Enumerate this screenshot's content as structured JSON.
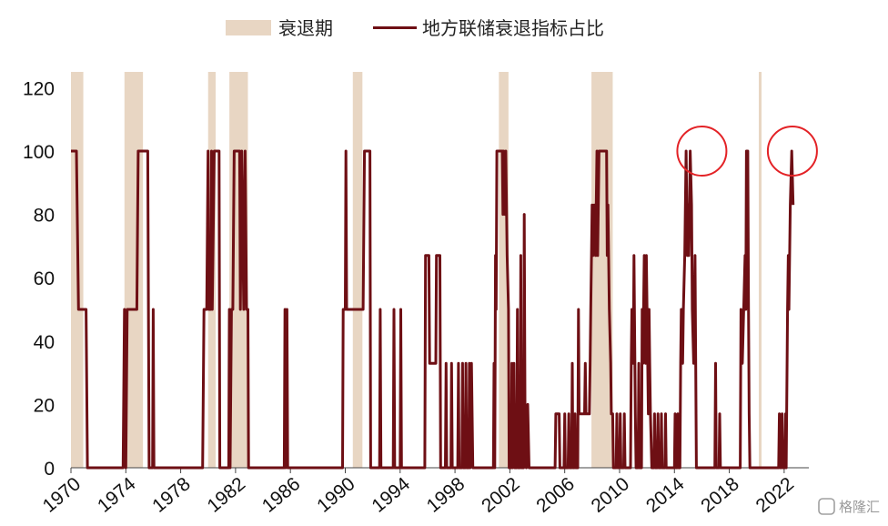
{
  "legend": {
    "recession_label": "衰退期",
    "series_label": "地方联储衰退指标占比"
  },
  "watermark": {
    "text": "格隆汇"
  },
  "colors": {
    "recession": "#e8d6c3",
    "series": "#6e0f14",
    "highlight_circle": "#e32226"
  },
  "chart_data": {
    "type": "line",
    "xlim": [
      1970,
      2023.8
    ],
    "ylim": [
      0,
      125
    ],
    "yticks": [
      0,
      20,
      40,
      60,
      80,
      100,
      120
    ],
    "xticks": [
      1970,
      1974,
      1978,
      1982,
      1986,
      1990,
      1994,
      1998,
      2002,
      2006,
      2010,
      2014,
      2018,
      2022
    ],
    "grid": false,
    "legend_position": "top",
    "recessions": [
      [
        1970.0,
        1970.9
      ],
      [
        1973.9,
        1975.25
      ],
      [
        1980.0,
        1980.55
      ],
      [
        1981.55,
        1982.9
      ],
      [
        1990.55,
        1991.25
      ],
      [
        2001.2,
        2001.9
      ],
      [
        2007.95,
        2009.5
      ],
      [
        2020.15,
        2020.35
      ]
    ],
    "highlight_circles": [
      {
        "x": 2016.0,
        "y": 100
      },
      {
        "x": 2022.6,
        "y": 100
      }
    ],
    "series": [
      {
        "name": "地方联储衰退指标占比",
        "points": [
          [
            1970.0,
            100
          ],
          [
            1970.4,
            100
          ],
          [
            1970.55,
            50
          ],
          [
            1971.1,
            50
          ],
          [
            1971.2,
            0
          ],
          [
            1973.8,
            0
          ],
          [
            1973.9,
            50
          ],
          [
            1974.0,
            0
          ],
          [
            1974.1,
            50
          ],
          [
            1974.8,
            50
          ],
          [
            1974.9,
            100
          ],
          [
            1975.6,
            100
          ],
          [
            1975.7,
            0
          ],
          [
            1975.95,
            0
          ],
          [
            1976.0,
            50
          ],
          [
            1976.05,
            0
          ],
          [
            1979.6,
            0
          ],
          [
            1979.7,
            50
          ],
          [
            1979.9,
            50
          ],
          [
            1980.0,
            100
          ],
          [
            1980.05,
            50
          ],
          [
            1980.2,
            50
          ],
          [
            1980.25,
            100
          ],
          [
            1980.3,
            50
          ],
          [
            1980.45,
            100
          ],
          [
            1980.8,
            100
          ],
          [
            1980.85,
            0
          ],
          [
            1981.5,
            0
          ],
          [
            1981.55,
            50
          ],
          [
            1981.6,
            0
          ],
          [
            1981.7,
            50
          ],
          [
            1981.8,
            50
          ],
          [
            1981.9,
            100
          ],
          [
            1982.3,
            100
          ],
          [
            1982.35,
            50
          ],
          [
            1982.45,
            100
          ],
          [
            1982.6,
            50
          ],
          [
            1982.7,
            100
          ],
          [
            1982.8,
            50
          ],
          [
            1982.9,
            50
          ],
          [
            1982.95,
            0
          ],
          [
            1985.55,
            0
          ],
          [
            1985.6,
            50
          ],
          [
            1985.65,
            0
          ],
          [
            1985.75,
            50
          ],
          [
            1985.8,
            0
          ],
          [
            1989.8,
            0
          ],
          [
            1989.85,
            50
          ],
          [
            1990.0,
            50
          ],
          [
            1990.05,
            100
          ],
          [
            1990.1,
            50
          ],
          [
            1991.3,
            50
          ],
          [
            1991.4,
            100
          ],
          [
            1991.8,
            100
          ],
          [
            1991.85,
            0
          ],
          [
            1992.5,
            0
          ],
          [
            1992.55,
            50
          ],
          [
            1992.6,
            0
          ],
          [
            1993.5,
            0
          ],
          [
            1993.55,
            50
          ],
          [
            1993.6,
            0
          ],
          [
            1994.0,
            0
          ],
          [
            1994.05,
            50
          ],
          [
            1994.1,
            0
          ],
          [
            1995.8,
            0
          ],
          [
            1995.85,
            67
          ],
          [
            1996.1,
            67
          ],
          [
            1996.15,
            33
          ],
          [
            1996.6,
            33
          ],
          [
            1996.65,
            67
          ],
          [
            1996.9,
            67
          ],
          [
            1996.95,
            0
          ],
          [
            1997.3,
            0
          ],
          [
            1997.35,
            33
          ],
          [
            1997.4,
            0
          ],
          [
            1997.7,
            0
          ],
          [
            1997.75,
            33
          ],
          [
            1997.8,
            0
          ],
          [
            1998.2,
            0
          ],
          [
            1998.25,
            33
          ],
          [
            1998.3,
            0
          ],
          [
            1998.5,
            0
          ],
          [
            1998.55,
            33
          ],
          [
            1998.6,
            0
          ],
          [
            1998.75,
            0
          ],
          [
            1998.8,
            33
          ],
          [
            1998.85,
            0
          ],
          [
            1999.0,
            0
          ],
          [
            1999.05,
            33
          ],
          [
            1999.1,
            0
          ],
          [
            1999.2,
            33
          ],
          [
            1999.3,
            0
          ],
          [
            2000.8,
            0
          ],
          [
            2000.85,
            33
          ],
          [
            2000.9,
            0
          ],
          [
            2000.95,
            67
          ],
          [
            2001.0,
            50
          ],
          [
            2001.05,
            100
          ],
          [
            2001.45,
            100
          ],
          [
            2001.5,
            80
          ],
          [
            2001.55,
            100
          ],
          [
            2001.65,
            80
          ],
          [
            2001.7,
            100
          ],
          [
            2001.8,
            67
          ],
          [
            2001.9,
            50
          ],
          [
            2001.95,
            0
          ],
          [
            2002.1,
            0
          ],
          [
            2002.15,
            33
          ],
          [
            2002.2,
            0
          ],
          [
            2002.3,
            33
          ],
          [
            2002.35,
            0
          ],
          [
            2002.5,
            0
          ],
          [
            2002.55,
            50
          ],
          [
            2002.6,
            0
          ],
          [
            2002.75,
            0
          ],
          [
            2002.8,
            67
          ],
          [
            2002.85,
            0
          ],
          [
            2003.0,
            0
          ],
          [
            2003.05,
            80
          ],
          [
            2003.1,
            20
          ],
          [
            2003.2,
            0
          ],
          [
            2003.3,
            20
          ],
          [
            2003.4,
            0
          ],
          [
            2005.3,
            0
          ],
          [
            2005.35,
            17
          ],
          [
            2005.6,
            17
          ],
          [
            2005.65,
            0
          ],
          [
            2005.95,
            0
          ],
          [
            2006.0,
            17
          ],
          [
            2006.05,
            0
          ],
          [
            2006.25,
            0
          ],
          [
            2006.3,
            17
          ],
          [
            2006.35,
            0
          ],
          [
            2006.5,
            0
          ],
          [
            2006.55,
            33
          ],
          [
            2006.6,
            0
          ],
          [
            2006.7,
            0
          ],
          [
            2006.75,
            17
          ],
          [
            2006.8,
            0
          ],
          [
            2006.95,
            0
          ],
          [
            2007.0,
            50
          ],
          [
            2007.05,
            17
          ],
          [
            2007.45,
            17
          ],
          [
            2007.5,
            33
          ],
          [
            2007.55,
            17
          ],
          [
            2007.8,
            17
          ],
          [
            2007.85,
            33
          ],
          [
            2007.9,
            50
          ],
          [
            2007.95,
            67
          ],
          [
            2008.0,
            83
          ],
          [
            2008.05,
            67
          ],
          [
            2008.15,
            83
          ],
          [
            2008.25,
            67
          ],
          [
            2008.35,
            100
          ],
          [
            2008.4,
            67
          ],
          [
            2008.5,
            100
          ],
          [
            2009.05,
            100
          ],
          [
            2009.1,
            67
          ],
          [
            2009.15,
            83
          ],
          [
            2009.25,
            50
          ],
          [
            2009.35,
            33
          ],
          [
            2009.4,
            17
          ],
          [
            2009.5,
            17
          ],
          [
            2009.55,
            0
          ],
          [
            2009.75,
            0
          ],
          [
            2009.8,
            17
          ],
          [
            2009.85,
            0
          ],
          [
            2010.0,
            0
          ],
          [
            2010.05,
            17
          ],
          [
            2010.1,
            0
          ],
          [
            2010.3,
            0
          ],
          [
            2010.35,
            17
          ],
          [
            2010.4,
            0
          ],
          [
            2010.8,
            0
          ],
          [
            2010.85,
            33
          ],
          [
            2010.9,
            50
          ],
          [
            2011.0,
            33
          ],
          [
            2011.05,
            67
          ],
          [
            2011.15,
            17
          ],
          [
            2011.2,
            0
          ],
          [
            2011.35,
            0
          ],
          [
            2011.4,
            33
          ],
          [
            2011.45,
            0
          ],
          [
            2011.6,
            0
          ],
          [
            2011.65,
            50
          ],
          [
            2011.7,
            33
          ],
          [
            2011.8,
            67
          ],
          [
            2011.85,
            50
          ],
          [
            2011.9,
            33
          ],
          [
            2011.95,
            67
          ],
          [
            2012.05,
            33
          ],
          [
            2012.1,
            17
          ],
          [
            2012.15,
            50
          ],
          [
            2012.2,
            33
          ],
          [
            2012.25,
            17
          ],
          [
            2012.35,
            0
          ],
          [
            2012.5,
            0
          ],
          [
            2012.55,
            17
          ],
          [
            2012.6,
            0
          ],
          [
            2012.75,
            0
          ],
          [
            2012.8,
            17
          ],
          [
            2012.85,
            0
          ],
          [
            2013.0,
            0
          ],
          [
            2013.05,
            17
          ],
          [
            2013.1,
            0
          ],
          [
            2013.3,
            0
          ],
          [
            2013.35,
            17
          ],
          [
            2013.4,
            0
          ],
          [
            2014.0,
            0
          ],
          [
            2014.05,
            17
          ],
          [
            2014.1,
            0
          ],
          [
            2014.2,
            0
          ],
          [
            2014.25,
            17
          ],
          [
            2014.3,
            0
          ],
          [
            2014.4,
            0
          ],
          [
            2014.45,
            33
          ],
          [
            2014.5,
            50
          ],
          [
            2014.6,
            33
          ],
          [
            2014.65,
            50
          ],
          [
            2014.75,
            67
          ],
          [
            2014.85,
            100
          ],
          [
            2014.9,
            83
          ],
          [
            2014.95,
            67
          ],
          [
            2015.0,
            83
          ],
          [
            2015.05,
            67
          ],
          [
            2015.15,
            100
          ],
          [
            2015.25,
            83
          ],
          [
            2015.3,
            50
          ],
          [
            2015.4,
            33
          ],
          [
            2015.5,
            67
          ],
          [
            2015.6,
            0
          ],
          [
            2016.95,
            0
          ],
          [
            2017.0,
            33
          ],
          [
            2017.05,
            0
          ],
          [
            2017.25,
            0
          ],
          [
            2017.3,
            17
          ],
          [
            2017.35,
            0
          ],
          [
            2018.8,
            0
          ],
          [
            2018.85,
            50
          ],
          [
            2018.95,
            33
          ],
          [
            2019.05,
            50
          ],
          [
            2019.15,
            67
          ],
          [
            2019.2,
            50
          ],
          [
            2019.25,
            100
          ],
          [
            2019.35,
            100
          ],
          [
            2019.4,
            50
          ],
          [
            2019.45,
            17
          ],
          [
            2019.5,
            0
          ],
          [
            2021.6,
            0
          ],
          [
            2021.65,
            17
          ],
          [
            2021.7,
            0
          ],
          [
            2021.8,
            0
          ],
          [
            2021.85,
            17
          ],
          [
            2021.9,
            0
          ],
          [
            2022.05,
            0
          ],
          [
            2022.1,
            17
          ],
          [
            2022.15,
            0
          ],
          [
            2022.25,
            50
          ],
          [
            2022.3,
            67
          ],
          [
            2022.35,
            50
          ],
          [
            2022.45,
            83
          ],
          [
            2022.55,
            100
          ],
          [
            2022.65,
            83
          ]
        ]
      }
    ]
  }
}
